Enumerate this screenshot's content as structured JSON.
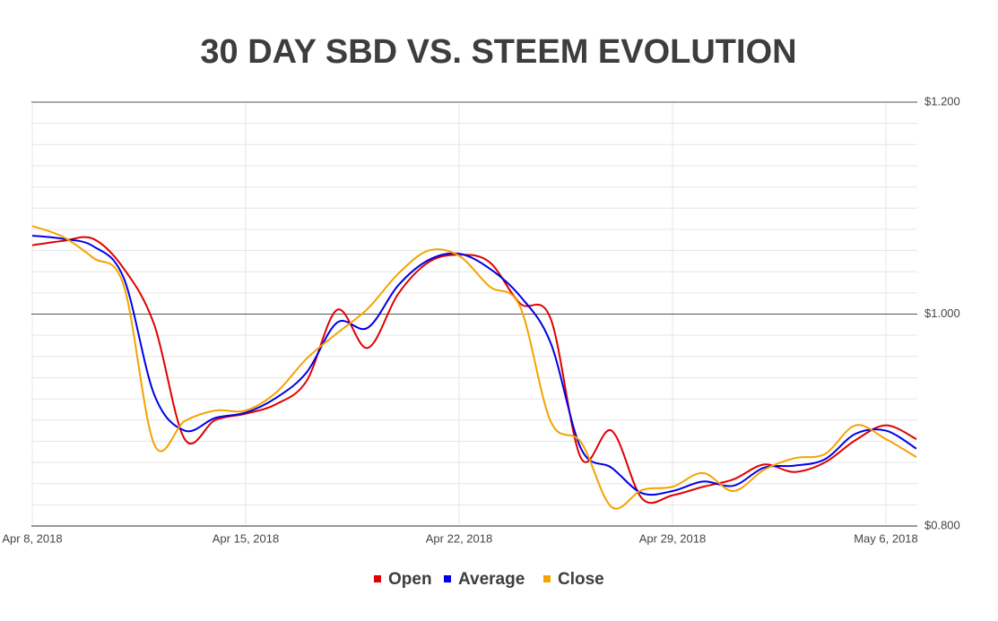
{
  "chart_data": {
    "type": "line",
    "title": "30 DAY SBD VS. STEEM EVOLUTION",
    "x": [
      "2018-04-08",
      "2018-04-09",
      "2018-04-10",
      "2018-04-11",
      "2018-04-12",
      "2018-04-13",
      "2018-04-14",
      "2018-04-15",
      "2018-04-16",
      "2018-04-17",
      "2018-04-18",
      "2018-04-19",
      "2018-04-20",
      "2018-04-21",
      "2018-04-22",
      "2018-04-23",
      "2018-04-24",
      "2018-04-25",
      "2018-04-26",
      "2018-04-27",
      "2018-04-28",
      "2018-04-29",
      "2018-04-30",
      "2018-05-01",
      "2018-05-02",
      "2018-05-03",
      "2018-05-04",
      "2018-05-05",
      "2018-05-06",
      "2018-05-07"
    ],
    "series": [
      {
        "name": "Open",
        "color": "#e00000",
        "values": [
          1.065,
          1.069,
          1.071,
          1.043,
          0.99,
          0.882,
          0.9,
          0.906,
          0.915,
          0.937,
          1.004,
          0.968,
          1.019,
          1.049,
          1.056,
          1.049,
          1.01,
          0.996,
          0.864,
          0.89,
          0.826,
          0.829,
          0.837,
          0.844,
          0.858,
          0.851,
          0.86,
          0.881,
          0.895,
          0.882
        ]
      },
      {
        "name": "Average",
        "color": "#0000e6",
        "values": [
          1.074,
          1.071,
          1.064,
          1.034,
          0.924,
          0.89,
          0.902,
          0.907,
          0.921,
          0.945,
          0.992,
          0.987,
          1.027,
          1.051,
          1.057,
          1.043,
          1.017,
          0.973,
          0.873,
          0.855,
          0.831,
          0.833,
          0.842,
          0.838,
          0.855,
          0.857,
          0.863,
          0.887,
          0.89,
          0.873
        ]
      },
      {
        "name": "Close",
        "color": "#f4a300",
        "values": [
          1.083,
          1.073,
          1.053,
          1.027,
          0.877,
          0.899,
          0.909,
          0.909,
          0.926,
          0.958,
          0.982,
          1.005,
          1.038,
          1.06,
          1.055,
          1.026,
          1.007,
          0.899,
          0.879,
          0.818,
          0.834,
          0.837,
          0.85,
          0.833,
          0.853,
          0.864,
          0.868,
          0.895,
          0.882,
          0.865
        ]
      }
    ],
    "xlim": [
      "2018-04-08",
      "2018-05-07"
    ],
    "xticks": [
      {
        "value": "2018-04-08",
        "label": "Apr 8, 2018"
      },
      {
        "value": "2018-04-15",
        "label": "Apr 15, 2018"
      },
      {
        "value": "2018-04-22",
        "label": "Apr 22, 2018"
      },
      {
        "value": "2018-04-29",
        "label": "Apr 29, 2018"
      },
      {
        "value": "2018-05-06",
        "label": "May 6, 2018"
      }
    ],
    "ylim": [
      0.8,
      1.2
    ],
    "yticks": [
      {
        "value": 0.8,
        "label": "$0.800"
      },
      {
        "value": 1.0,
        "label": "$1.000"
      },
      {
        "value": 1.2,
        "label": "$1.200"
      }
    ],
    "minor_yticks": [
      0.82,
      0.84,
      0.86,
      0.88,
      0.9,
      0.92,
      0.94,
      0.96,
      0.98,
      1.02,
      1.04,
      1.06,
      1.08,
      1.1,
      1.12,
      1.14,
      1.16,
      1.18
    ],
    "y_axis_side": "right",
    "grid": true,
    "legend": "bottom"
  }
}
